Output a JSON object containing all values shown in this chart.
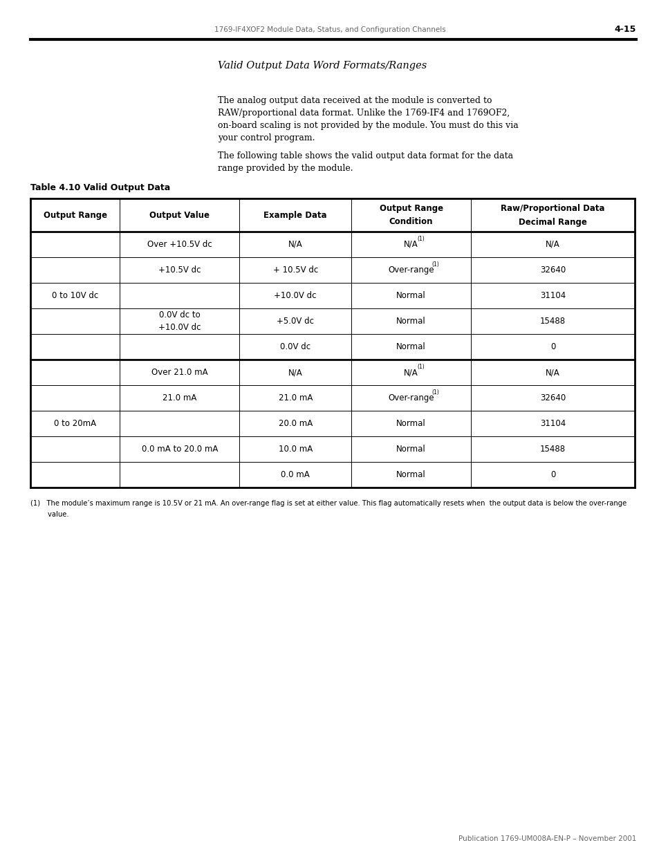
{
  "header_text": "1769-IF4XOF2 Module Data, Status, and Configuration Channels",
  "page_num": "4-15",
  "section_title": "Valid Output Data Word Formats/Ranges",
  "paragraph1_lines": [
    "The analog output data received at the module is converted to",
    "RAW/proportional data format. Unlike the 1769-IF4 and 1769OF2,",
    "on-board scaling is not provided by the module. You must do this via",
    "your control program."
  ],
  "paragraph2_lines": [
    "The following table shows the valid output data format for the data",
    "range provided by the module."
  ],
  "table_title": "Table 4.10 Valid Output Data",
  "col_headers": [
    "Output Range",
    "Output Value",
    "Example Data",
    "Output Range\nCondition",
    "Raw/Proportional Data\nDecimal Range"
  ],
  "footnote_line1": "(1)   The module’s maximum range is 10.5V or 21 mA. An over-range flag is set at either value. This flag automatically resets when  the output data is below the over-range",
  "footnote_line2": "        value.",
  "footer_text": "Publication 1769-UM008A-EN-P – November 2001",
  "example_data": [
    "N/A",
    "+ 10.5V dc",
    "+10.0V dc",
    "+5.0V dc",
    "0.0V dc",
    "N/A",
    "21.0 mA",
    "20.0 mA",
    "10.0 mA",
    "0.0 mA"
  ],
  "decimal_data": [
    "N/A",
    "32640",
    "31104",
    "15488",
    "0",
    "N/A",
    "32640",
    "31104",
    "15488",
    "0"
  ],
  "condition_normal": "Normal",
  "bg_color": "#ffffff"
}
